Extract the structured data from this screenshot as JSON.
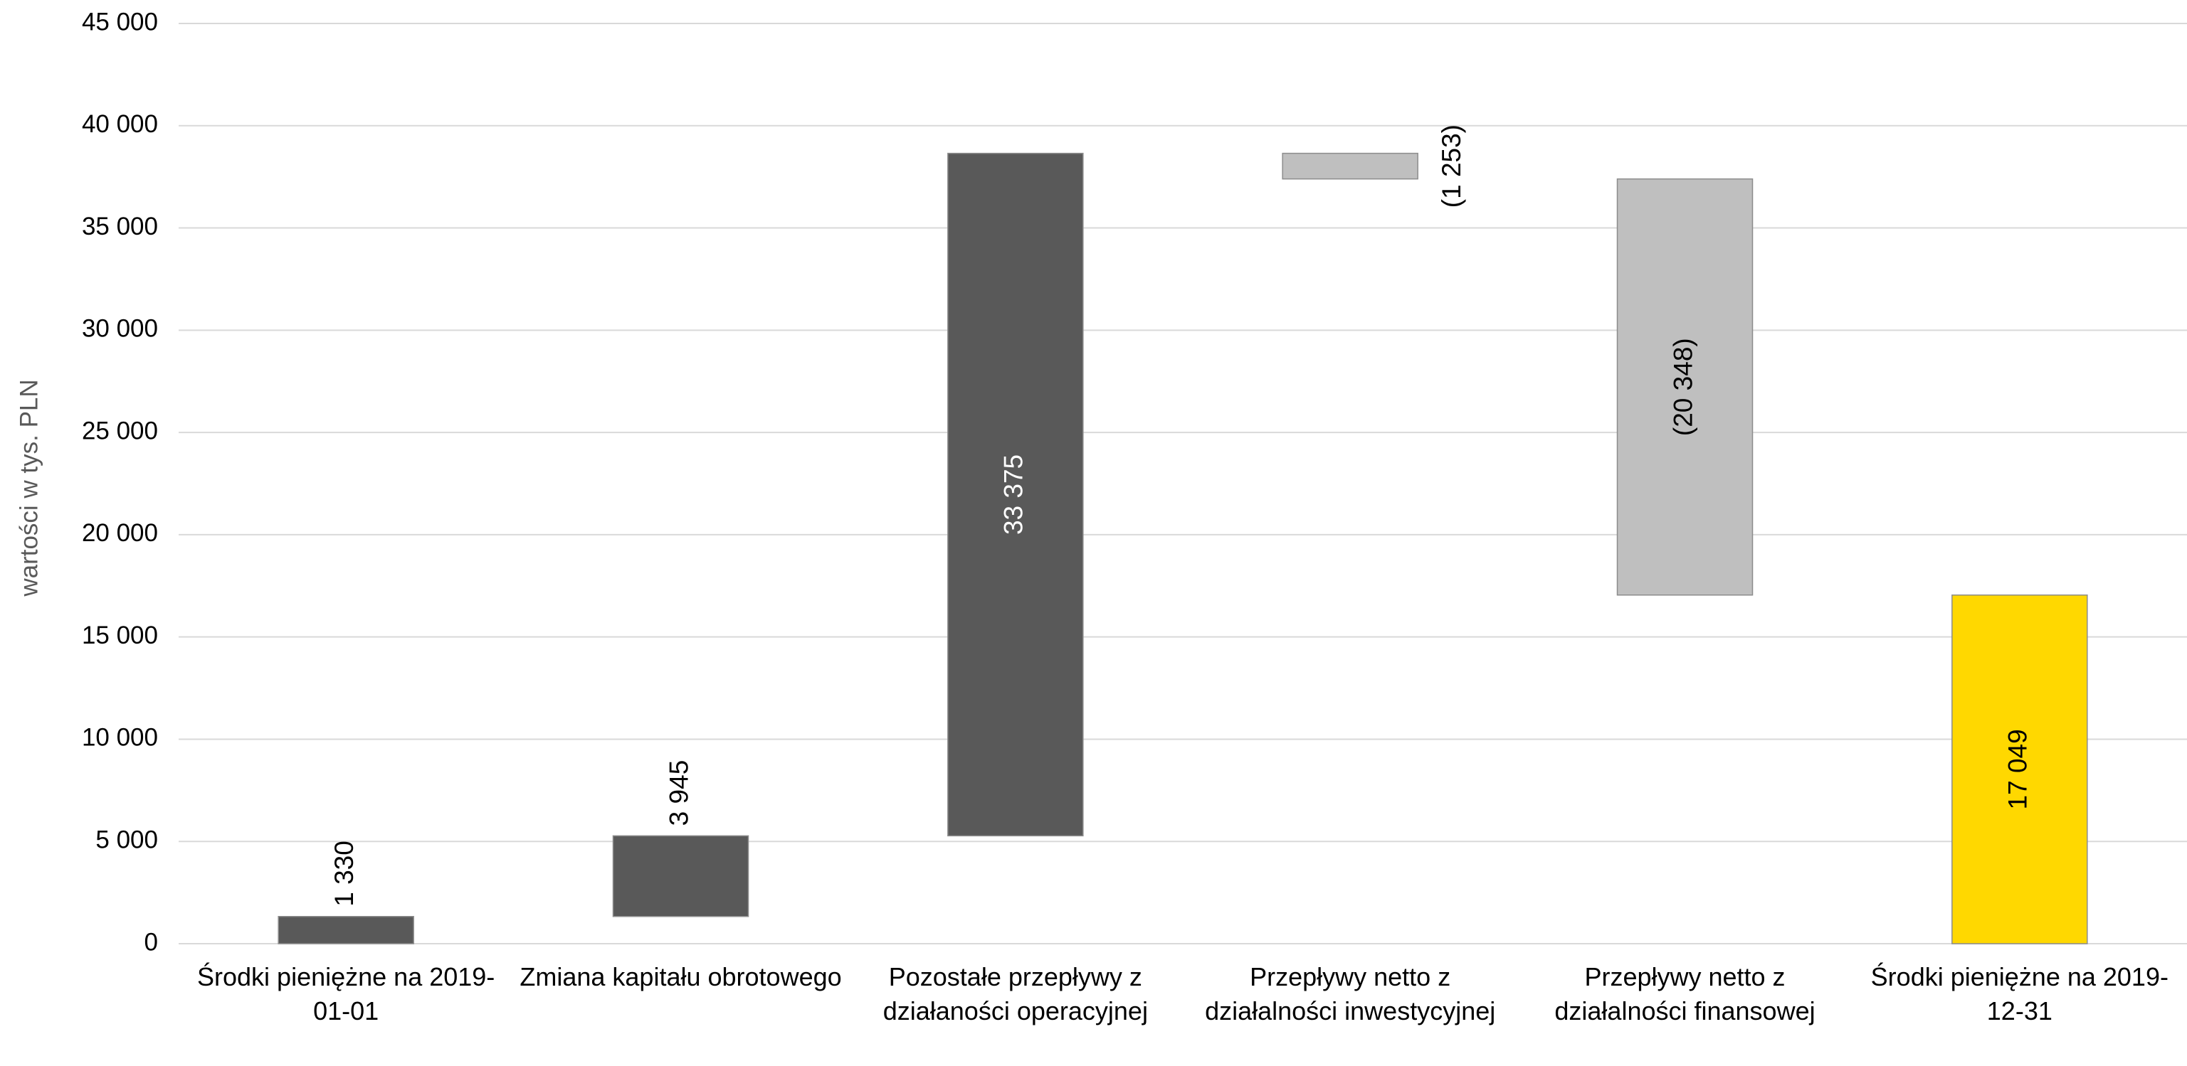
{
  "chart_data": {
    "type": "waterfall",
    "y_label": "wartości w tys. PLN",
    "categories": [
      "Środki pieniężne na 2019-01-01",
      "Zmiana kapitału obrotowego",
      "Pozostałe przepływy z działaności operacyjnej",
      "Przepływy netto z działalności inwestycyjnej",
      "Przepływy netto z działalności finansowej",
      "Środki pieniężne na 2019-12-31"
    ],
    "values": [
      1330,
      3945,
      33375,
      -1253,
      -20348,
      17049
    ],
    "value_labels": [
      "1 330",
      "3 945",
      "33 375",
      "(1 253)",
      "(20 348)",
      "17 049"
    ],
    "measure": [
      "relative",
      "relative",
      "relative",
      "relative",
      "relative",
      "total"
    ],
    "colors": [
      "#595959",
      "#595959",
      "#595959",
      "#bfbfbf",
      "#bfbfbf",
      "#ffd800"
    ],
    "ylim": [
      0,
      45000
    ],
    "yticks": [
      0,
      {
        "value": 5000,
        "label": "5 000"
      },
      {
        "value": 10000,
        "label": "10 000"
      },
      {
        "value": 15000,
        "label": "15 000"
      },
      {
        "value": 20000,
        "label": "20 000"
      },
      {
        "value": 25000,
        "label": "25 000"
      },
      {
        "value": 30000,
        "label": "30 000"
      },
      {
        "value": 35000,
        "label": "35 000"
      },
      {
        "value": 40000,
        "label": "40 000"
      },
      {
        "value": 45000,
        "label": "45 000"
      }
    ],
    "grid": true
  }
}
